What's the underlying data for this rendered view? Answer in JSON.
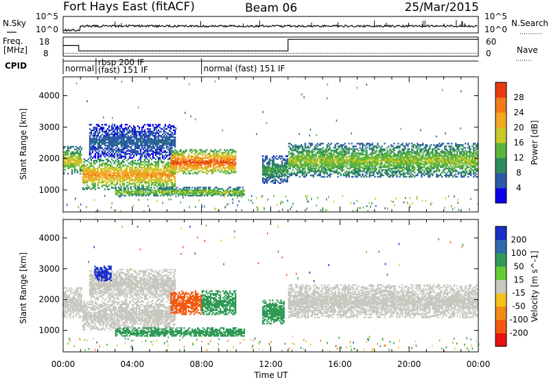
{
  "header": {
    "radar": "Fort Hays East (fitACF)",
    "beam": "Beam 06",
    "date": "25/Mar/2015"
  },
  "strip": {
    "nsky_label": "N.Sky",
    "nsky_ticks": [
      "10^5",
      "10^0"
    ],
    "nsearch_label": "N.Search",
    "nsearch_ticks": [
      "10^5",
      "10^0"
    ],
    "freq_label_line1": "Freq.",
    "freq_label_line2": "[MHz]",
    "freq_ticks": [
      "18",
      "8"
    ],
    "nave_label": "Nave",
    "nave_ticks": [
      "60",
      "0"
    ],
    "cpid_label": "CPID",
    "cpid_segments": [
      {
        "start_hour": 0.0,
        "label_line1": "normal",
        "label_line2": ""
      },
      {
        "start_hour": 1.9,
        "label_line1": "rbsp 200 IF",
        "label_line2": "(fast) 151 IF"
      },
      {
        "start_hour": 8.0,
        "label_line1": "normal (fast) 151 IF",
        "label_line2": ""
      }
    ],
    "freq_series": [
      [
        0,
        14
      ],
      [
        0.9,
        14
      ],
      [
        0.9,
        11
      ],
      [
        8.0,
        11
      ],
      [
        13.0,
        11
      ],
      [
        13.0,
        17.5
      ],
      [
        24,
        17.5
      ]
    ],
    "nave_level": 10
  },
  "panels": {
    "xlabel": "Time UT",
    "xticks": [
      "00:00",
      "04:00",
      "08:00",
      "12:00",
      "16:00",
      "20:00",
      "00:00"
    ],
    "xtick_hours": [
      0,
      4,
      8,
      12,
      16,
      20,
      24
    ],
    "ylabel": "Slant Range [km]",
    "yticks": [
      1000,
      2000,
      3000,
      4000
    ],
    "ylim": [
      300,
      4600
    ],
    "xlim": [
      0,
      24
    ]
  },
  "chart_data": [
    {
      "type": "heatmap",
      "name_panel": "power",
      "xlabel": "Time UT",
      "ylabel": "Slant Range [km]",
      "colorbar_label": "Power [dB]",
      "colorbar_ticks": [
        4,
        8,
        12,
        16,
        20,
        24,
        28
      ],
      "colorbar_colors": [
        "#0b00e8",
        "#2c5aa8",
        "#2f8a5b",
        "#5cb43d",
        "#c9c829",
        "#f3a623",
        "#f27a18",
        "#e83a10"
      ],
      "regions": [
        {
          "t0": 0.0,
          "t1": 1.1,
          "r0": 1500,
          "r1": 2400,
          "power": 16
        },
        {
          "t0": 1.1,
          "t1": 6.5,
          "r0": 1000,
          "r1": 2000,
          "power": 20
        },
        {
          "t0": 1.5,
          "t1": 6.5,
          "r0": 2000,
          "r1": 3100,
          "power": 6
        },
        {
          "t0": 3.0,
          "t1": 10.5,
          "r0": 800,
          "r1": 1100,
          "power": 14
        },
        {
          "t0": 6.2,
          "t1": 10.0,
          "r0": 1500,
          "r1": 2300,
          "power": 24
        },
        {
          "t0": 11.5,
          "t1": 13.0,
          "r0": 1200,
          "r1": 2100,
          "power": 10
        },
        {
          "t0": 13.0,
          "t1": 24.0,
          "r0": 1400,
          "r1": 2500,
          "power": 14
        }
      ]
    },
    {
      "type": "heatmap",
      "name_panel": "velocity",
      "xlabel": "Time UT",
      "ylabel": "Slant Range [km]",
      "colorbar_label": "Velocity [m s^-1]",
      "colorbar_ticks": [
        200,
        100,
        50,
        15,
        -15,
        -50,
        -100,
        -200
      ],
      "colorbar_colors": [
        "#1a2ec8",
        "#2f6bab",
        "#2f9a55",
        "#66cc33",
        "#c8c8c0",
        "#f4c21c",
        "#f28a18",
        "#f25a10",
        "#e81010"
      ],
      "regions": [
        {
          "t0": 0.0,
          "t1": 1.1,
          "r0": 1400,
          "r1": 2400,
          "velocity": 0
        },
        {
          "t0": 1.1,
          "t1": 6.5,
          "r0": 1000,
          "r1": 2000,
          "velocity": 0
        },
        {
          "t0": 1.5,
          "t1": 6.5,
          "r0": 2000,
          "r1": 3000,
          "velocity": 0
        },
        {
          "t0": 1.8,
          "t1": 2.8,
          "r0": 2600,
          "r1": 3100,
          "velocity": 180
        },
        {
          "t0": 3.0,
          "t1": 10.5,
          "r0": 800,
          "r1": 1100,
          "velocity": 60
        },
        {
          "t0": 6.2,
          "t1": 8.0,
          "r0": 1500,
          "r1": 2300,
          "velocity": -120
        },
        {
          "t0": 8.0,
          "t1": 10.0,
          "r0": 1500,
          "r1": 2300,
          "velocity": 60
        },
        {
          "t0": 11.5,
          "t1": 12.8,
          "r0": 1200,
          "r1": 2000,
          "velocity": 60
        },
        {
          "t0": 13.0,
          "t1": 24.0,
          "r0": 1400,
          "r1": 2500,
          "velocity": 0
        }
      ]
    }
  ]
}
